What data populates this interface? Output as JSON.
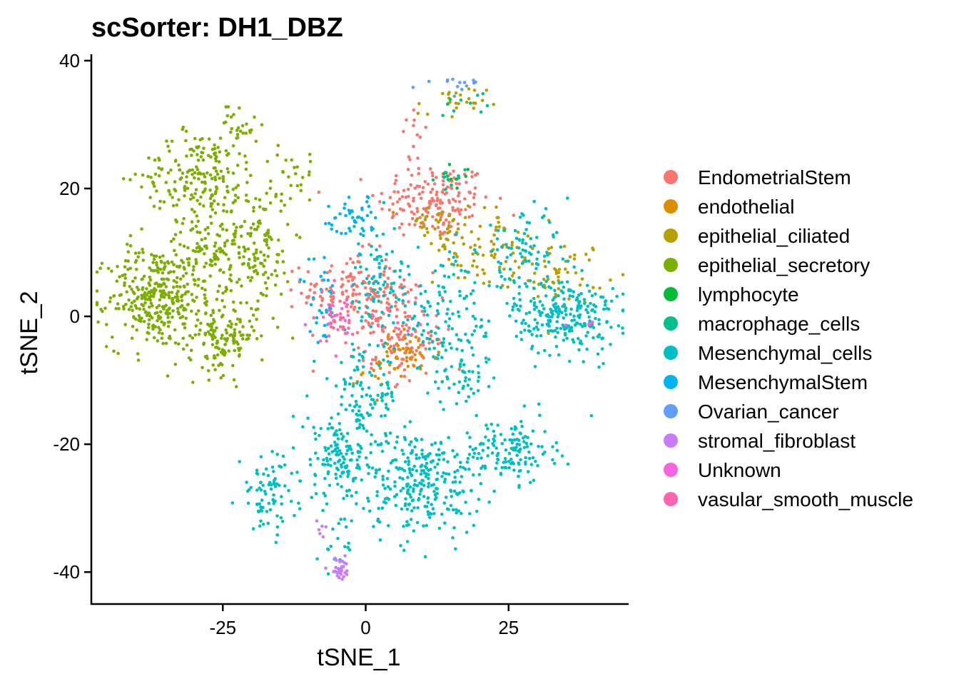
{
  "chart_data": {
    "type": "scatter",
    "title": "scSorter: DH1_DBZ",
    "xlabel": "tSNE_1",
    "ylabel": "tSNE_2",
    "xlim": [
      -48,
      46
    ],
    "ylim": [
      -45,
      41
    ],
    "x_ticks": [
      -25,
      0,
      25
    ],
    "x_tick_labels": [
      "-25",
      "0",
      "25"
    ],
    "y_ticks": [
      -40,
      -20,
      0,
      20,
      40
    ],
    "y_tick_labels": [
      "-40",
      "-20",
      "0",
      "20",
      "40"
    ],
    "grid": false,
    "legend_position": "right",
    "series": [
      {
        "name": "EndometrialStem",
        "color": "#F8766D",
        "clusters": [
          {
            "cx": 12,
            "cy": 18,
            "sx": 5,
            "sy": 3,
            "n": 170
          },
          {
            "cx": -3,
            "cy": 4,
            "sx": 4,
            "sy": 3,
            "n": 120
          },
          {
            "cx": 4,
            "cy": 0,
            "sx": 4,
            "sy": 3.5,
            "n": 110
          },
          {
            "cx": 8,
            "cy": -6,
            "sx": 3,
            "sy": 2,
            "n": 50
          },
          {
            "cx": 9,
            "cy": 27,
            "sx": 1.5,
            "sy": 2.5,
            "n": 14
          }
        ]
      },
      {
        "name": "endothelial",
        "color": "#DE8C00",
        "clusters": [
          {
            "cx": 7,
            "cy": -6,
            "sx": 3,
            "sy": 2,
            "n": 45
          },
          {
            "cx": 2,
            "cy": -9,
            "sx": 2,
            "sy": 1.5,
            "n": 12
          }
        ]
      },
      {
        "name": "epithelial_ciliated",
        "color": "#B79F00",
        "clusters": [
          {
            "cx": 20,
            "cy": 11,
            "sx": 4,
            "sy": 3,
            "n": 80
          },
          {
            "cx": 34,
            "cy": 7,
            "sx": 4,
            "sy": 2.5,
            "n": 60
          },
          {
            "cx": 15,
            "cy": 33,
            "sx": 3,
            "sy": 1.5,
            "n": 25
          },
          {
            "cx": 12,
            "cy": 14,
            "sx": 3,
            "sy": 2,
            "n": 30
          }
        ]
      },
      {
        "name": "epithelial_secretory",
        "color": "#7CAE00",
        "clusters": [
          {
            "cx": -37,
            "cy": 3,
            "sx": 4,
            "sy": 4,
            "n": 320
          },
          {
            "cx": -29,
            "cy": 22,
            "sx": 5,
            "sy": 3.5,
            "n": 200
          },
          {
            "cx": -25,
            "cy": -3,
            "sx": 3,
            "sy": 3,
            "n": 150
          },
          {
            "cx": -19,
            "cy": 11,
            "sx": 3,
            "sy": 5,
            "n": 140
          },
          {
            "cx": -28,
            "cy": 9,
            "sx": 3,
            "sy": 3,
            "n": 100
          },
          {
            "cx": -22,
            "cy": 30,
            "sx": 1.5,
            "sy": 2,
            "n": 25
          },
          {
            "cx": -13,
            "cy": 22,
            "sx": 2.5,
            "sy": 2,
            "n": 25
          }
        ]
      },
      {
        "name": "lymphocyte",
        "color": "#00BA38",
        "clusters": [
          {
            "cx": 15,
            "cy": 22,
            "sx": 1.5,
            "sy": 1,
            "n": 8
          }
        ]
      },
      {
        "name": "macrophage_cells",
        "color": "#00C08B",
        "clusters": [
          {
            "cx": 17,
            "cy": 34,
            "sx": 2,
            "sy": 1.5,
            "n": 10
          },
          {
            "cx": 15,
            "cy": 22,
            "sx": 2,
            "sy": 1,
            "n": 10
          }
        ]
      },
      {
        "name": "Mesenchymal_cells",
        "color": "#00BFC4",
        "clusters": [
          {
            "cx": 35,
            "cy": 0,
            "sx": 4.5,
            "sy": 3,
            "n": 240
          },
          {
            "cx": 10,
            "cy": -26,
            "sx": 5,
            "sy": 4,
            "n": 260
          },
          {
            "cx": 25,
            "cy": -21,
            "sx": 4,
            "sy": 2.5,
            "n": 140
          },
          {
            "cx": -4,
            "cy": -22,
            "sx": 4,
            "sy": 4,
            "n": 170
          },
          {
            "cx": -17,
            "cy": -28,
            "sx": 2.5,
            "sy": 3,
            "n": 80
          },
          {
            "cx": 2,
            "cy": 5,
            "sx": 4,
            "sy": 5,
            "n": 90
          },
          {
            "cx": 15,
            "cy": 0,
            "sx": 5,
            "sy": 5,
            "n": 130
          },
          {
            "cx": 28,
            "cy": 10,
            "sx": 4,
            "sy": 3,
            "n": 80
          },
          {
            "cx": 0,
            "cy": -12,
            "sx": 3,
            "sy": 3,
            "n": 80
          },
          {
            "cx": 17,
            "cy": -10,
            "sx": 3,
            "sy": 2,
            "n": 40
          },
          {
            "cx": -5,
            "cy": -36,
            "sx": 1.5,
            "sy": 2,
            "n": 15
          }
        ]
      },
      {
        "name": "MesenchymalStem",
        "color": "#00B4F0",
        "clusters": [
          {
            "cx": -2,
            "cy": 15,
            "sx": 2.5,
            "sy": 2,
            "n": 45
          },
          {
            "cx": -7,
            "cy": 2,
            "sx": 1.5,
            "sy": 3,
            "n": 30
          }
        ]
      },
      {
        "name": "Ovarian_cancer",
        "color": "#619CFF",
        "clusters": [
          {
            "cx": 15,
            "cy": 36.5,
            "sx": 2.5,
            "sy": 0.6,
            "n": 14
          }
        ]
      },
      {
        "name": "stromal_fibroblast",
        "color": "#C77CFF",
        "clusters": [
          {
            "cx": -4.5,
            "cy": -39.5,
            "sx": 1,
            "sy": 0.8,
            "n": 30
          },
          {
            "cx": -8,
            "cy": -33,
            "sx": 0.8,
            "sy": 1,
            "n": 6
          }
        ]
      },
      {
        "name": "Unknown",
        "color": "#F564E3",
        "clusters": [
          {
            "cx": -6,
            "cy": -1,
            "sx": 2,
            "sy": 2,
            "n": 15
          },
          {
            "cx": 38,
            "cy": -1,
            "sx": 2,
            "sy": 1,
            "n": 4
          }
        ]
      },
      {
        "name": "vasular_smooth_muscle",
        "color": "#FF64B0",
        "clusters": [
          {
            "cx": -5,
            "cy": 0,
            "sx": 2,
            "sy": 2,
            "n": 25
          },
          {
            "cx": 5,
            "cy": -3,
            "sx": 2,
            "sy": 2,
            "n": 10
          }
        ]
      }
    ]
  }
}
